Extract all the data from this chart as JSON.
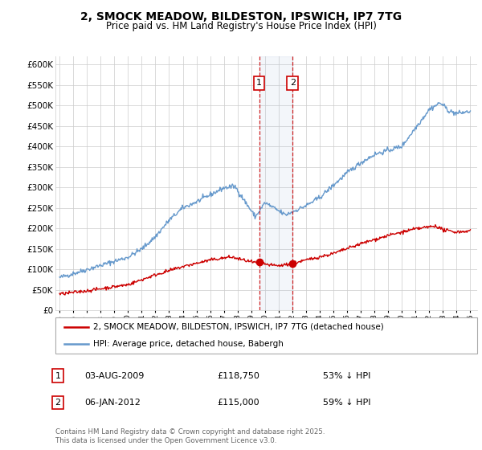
{
  "title": "2, SMOCK MEADOW, BILDESTON, IPSWICH, IP7 7TG",
  "subtitle": "Price paid vs. HM Land Registry's House Price Index (HPI)",
  "ylim": [
    0,
    620000
  ],
  "yticks": [
    0,
    50000,
    100000,
    150000,
    200000,
    250000,
    300000,
    350000,
    400000,
    450000,
    500000,
    550000,
    600000
  ],
  "transactions": [
    {
      "date_num": 2009.58,
      "price": 118750,
      "label": "1",
      "date_str": "03-AUG-2009",
      "pct": "53% ↓ HPI"
    },
    {
      "date_num": 2012.02,
      "price": 115000,
      "label": "2",
      "date_str": "06-JAN-2012",
      "pct": "59% ↓ HPI"
    }
  ],
  "legend_property": "2, SMOCK MEADOW, BILDESTON, IPSWICH, IP7 7TG (detached house)",
  "legend_hpi": "HPI: Average price, detached house, Babergh",
  "footer": "Contains HM Land Registry data © Crown copyright and database right 2025.\nThis data is licensed under the Open Government Licence v3.0.",
  "property_color": "#cc0000",
  "hpi_color": "#6699cc",
  "background_color": "#ffffff",
  "grid_color": "#cccccc"
}
